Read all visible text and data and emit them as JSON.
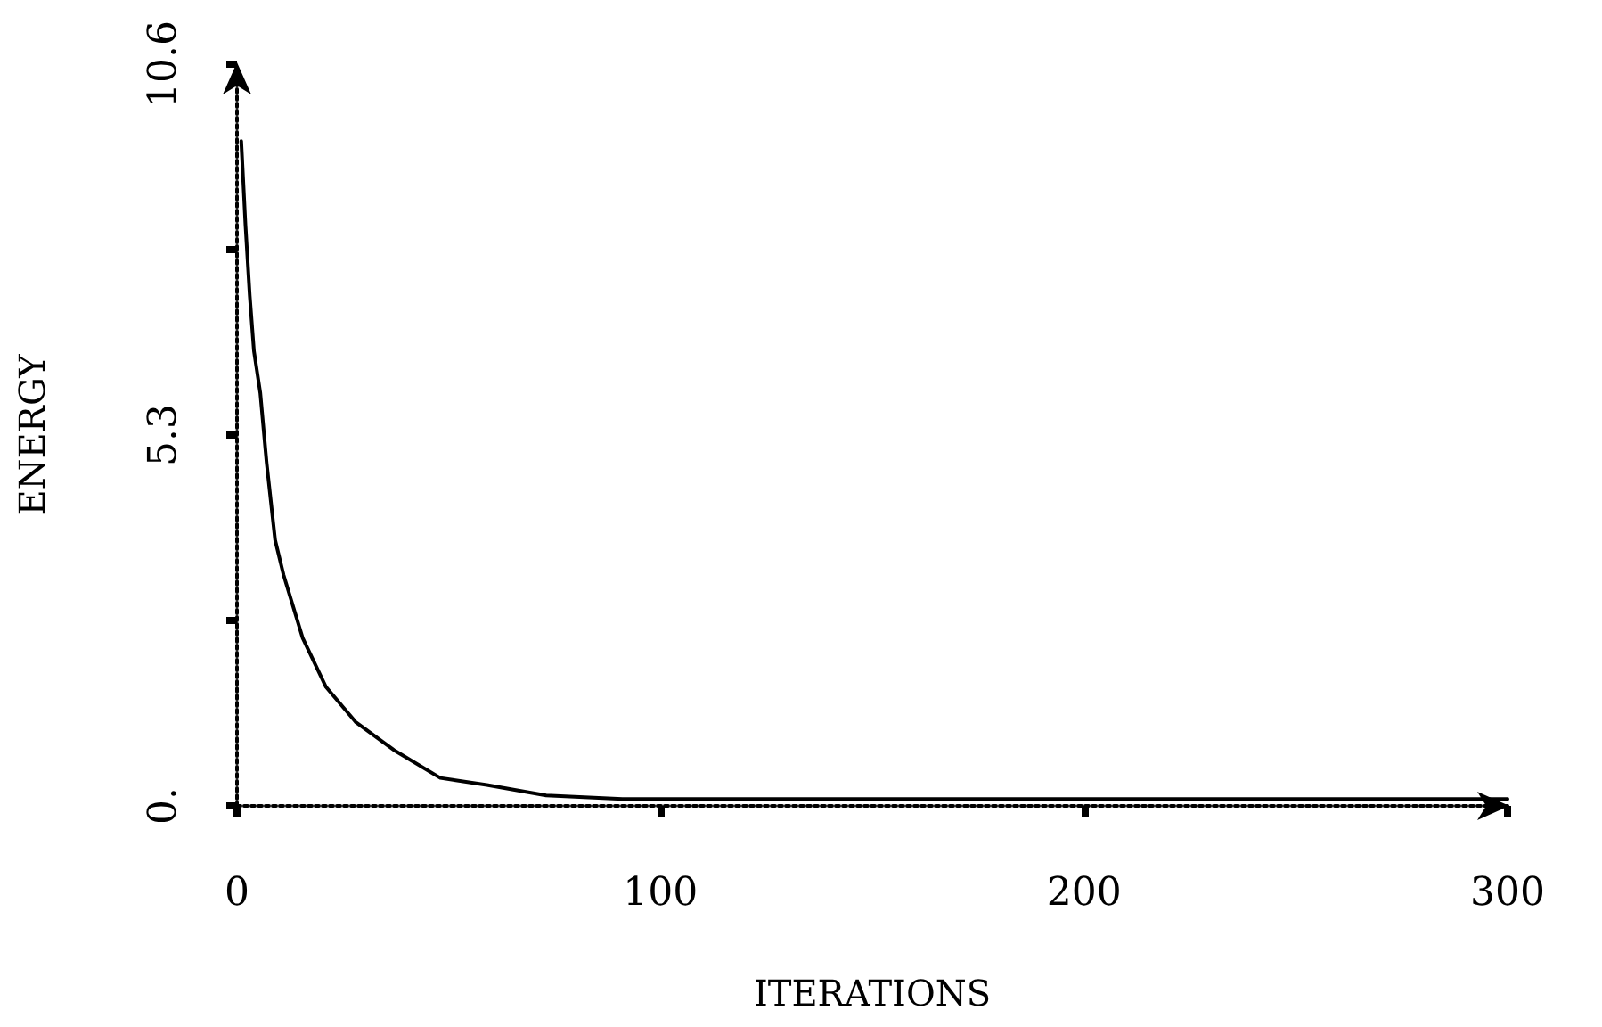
{
  "chart_data": {
    "type": "line",
    "xlabel": "ITERATIONS",
    "ylabel": "ENERGY",
    "x": [
      1,
      2,
      3,
      4,
      5.5,
      7,
      9,
      11,
      15.5,
      21,
      28,
      37,
      48,
      59,
      73,
      91,
      100,
      150,
      200,
      250,
      300
    ],
    "series": [
      {
        "color": "#000000",
        "values": [
          9.5,
          8.3,
          7.3,
          6.5,
          5.9,
          4.9,
          3.8,
          3.3,
          2.4,
          1.7,
          1.2,
          0.8,
          0.4,
          0.3,
          0.15,
          0.1,
          0.1,
          0.1,
          0.1,
          0.1,
          0.1
        ]
      }
    ],
    "xlim": [
      0,
      300
    ],
    "xticks": [
      0,
      100,
      200,
      300
    ],
    "ylim": [
      0,
      10.6
    ],
    "yticks": [
      {
        "value": 0,
        "label": "0."
      },
      {
        "value": 2.65,
        "label": null
      },
      5.3,
      {
        "value": 7.95,
        "label": null
      },
      10.6
    ],
    "grid": false,
    "marker": "none",
    "line_style": "solid"
  }
}
